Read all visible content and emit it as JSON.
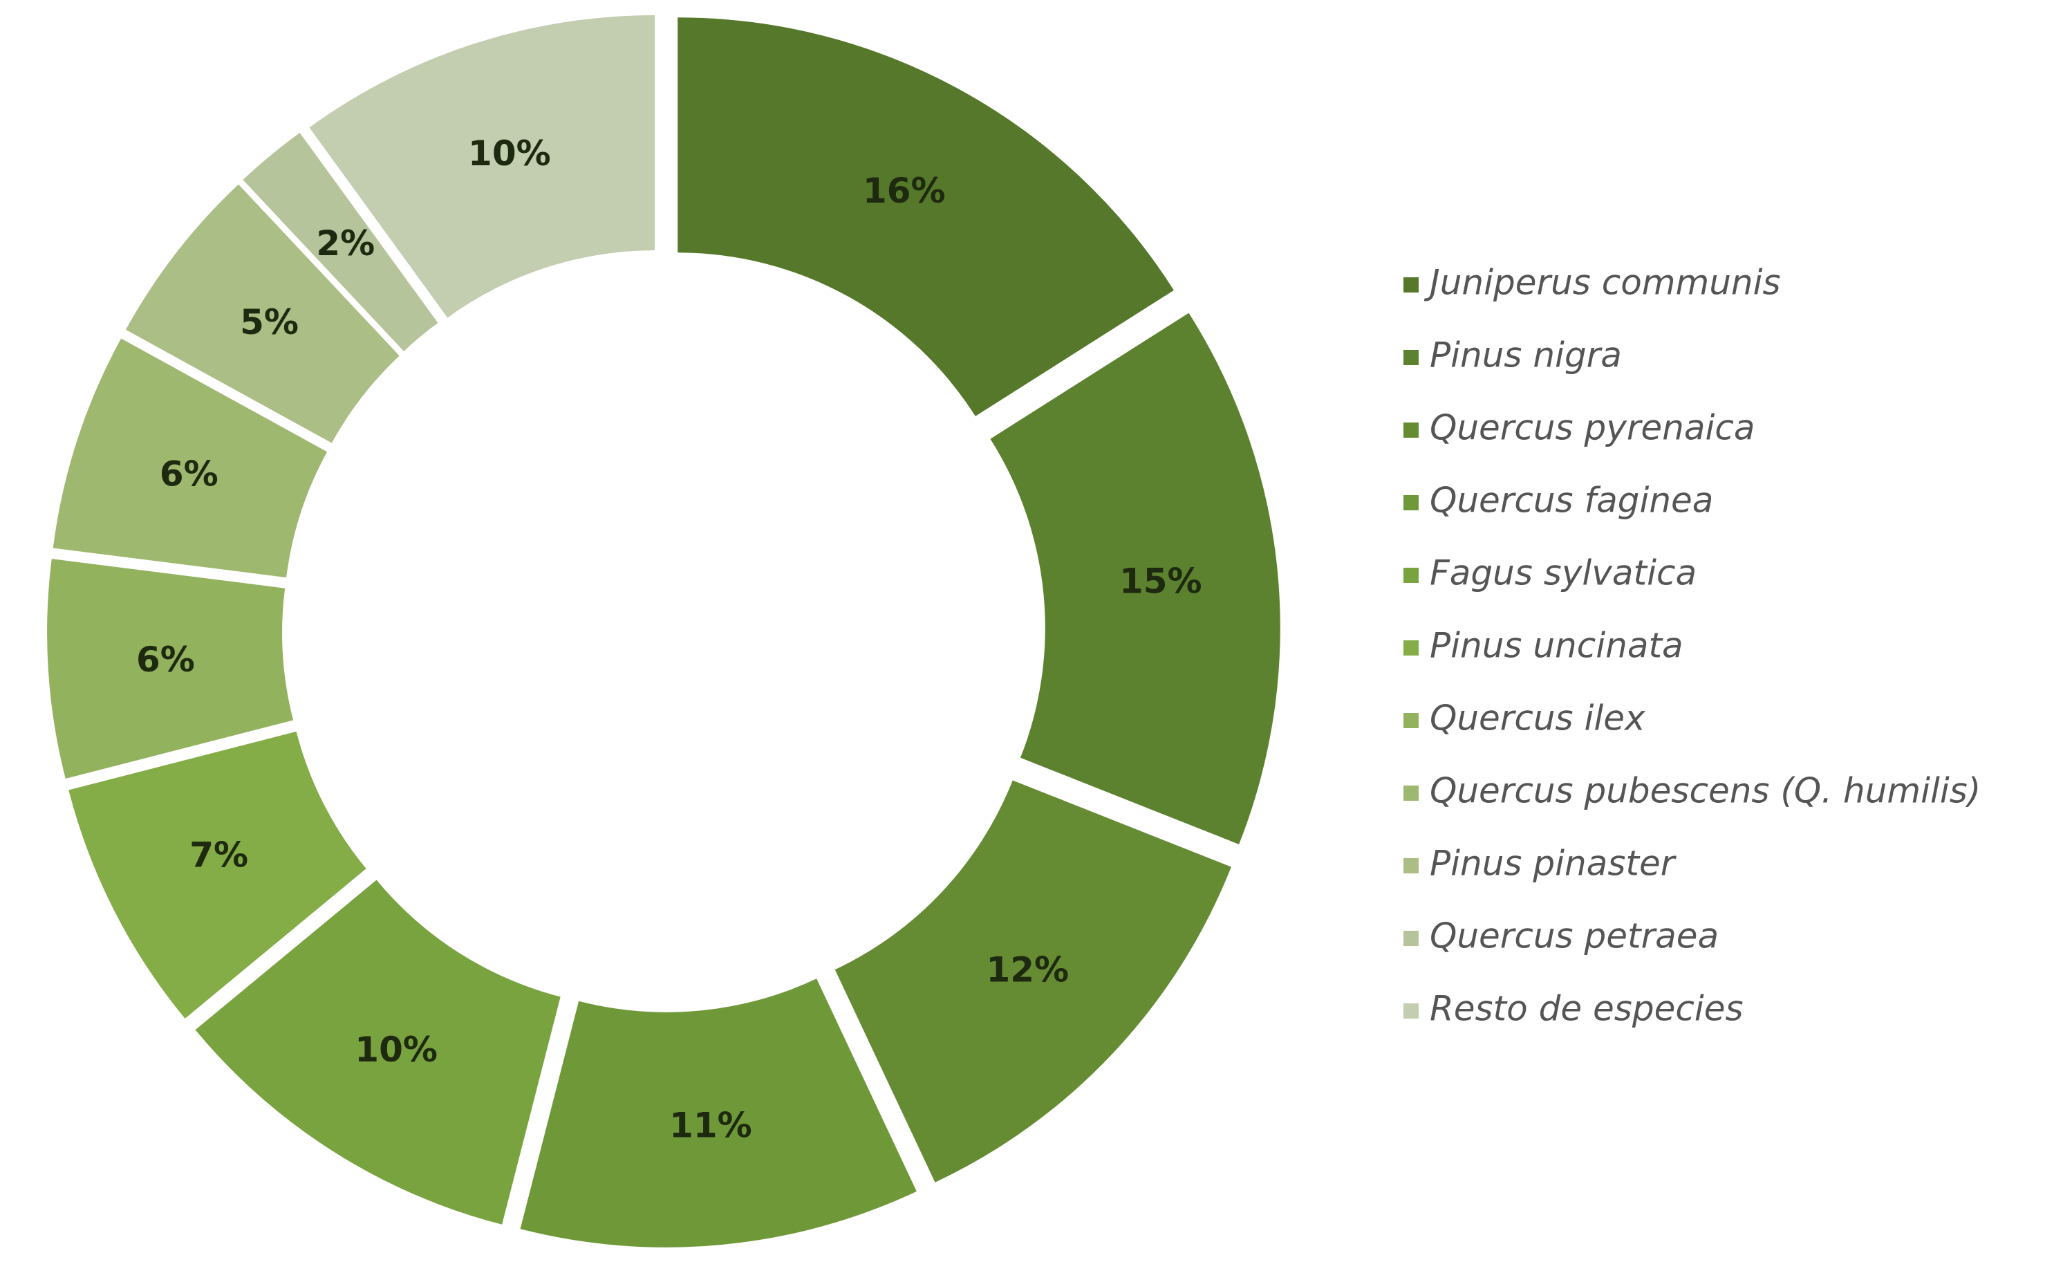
{
  "chart_data": {
    "type": "donut",
    "categories": [
      "Juniperus communis",
      "Pinus nigra",
      "Quercus pyrenaica",
      "Quercus faginea",
      "Fagus sylvatica",
      "Pinus uncinata",
      "Quercus ilex",
      "Quercus pubescens (Q. humilis)",
      "Pinus pinaster",
      "Quercus petraea",
      "Resto de especies"
    ],
    "values": [
      16,
      15,
      12,
      11,
      10,
      7,
      6,
      6,
      5,
      2,
      10
    ],
    "value_labels": [
      "16%",
      "15%",
      "12%",
      "11%",
      "10%",
      "7%",
      "6%",
      "6%",
      "5%",
      "2%",
      "10%"
    ],
    "colors": [
      "#56782a",
      "#5d822f",
      "#658c33",
      "#6f9939",
      "#79a33f",
      "#84ac47",
      "#93b25e",
      "#9fb86f",
      "#abbe85",
      "#b6c49b",
      "#c3cdb0"
    ],
    "legend": "right"
  }
}
